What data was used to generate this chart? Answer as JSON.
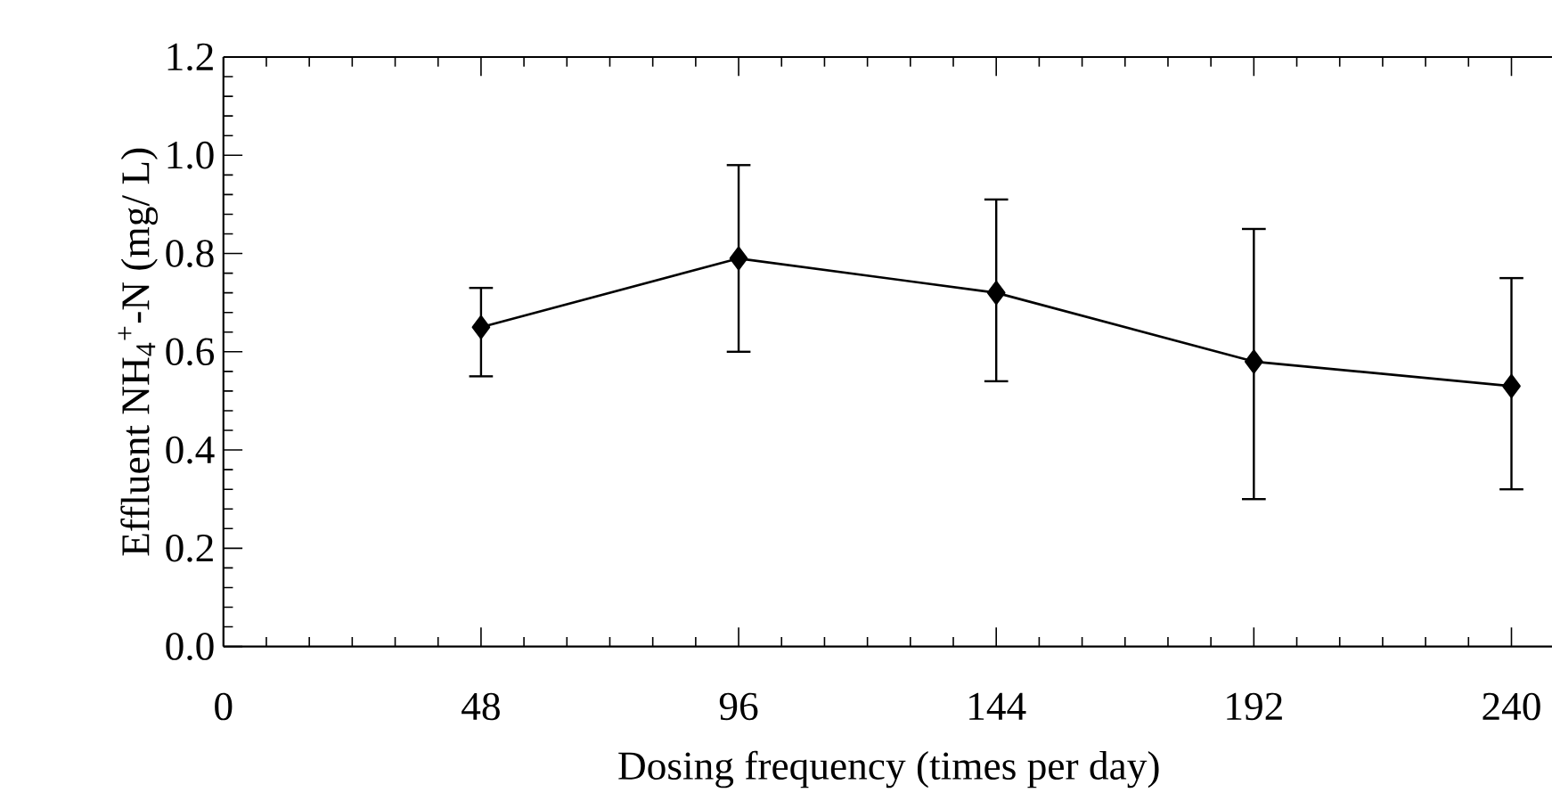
{
  "chart_data": {
    "type": "line",
    "xlabel": "Dosing frequency (times per day)",
    "ylabel": "Effluent NH$_{4}$$^{+}$-N (mg/ L)",
    "x": [
      48,
      96,
      144,
      192,
      240
    ],
    "series": [
      {
        "color": "#000000",
        "values": [
          0.65,
          0.79,
          0.72,
          0.58,
          0.53
        ],
        "errors": [
          [
            0.55,
            0.73
          ],
          [
            0.6,
            0.98
          ],
          [
            0.54,
            0.91
          ],
          [
            0.3,
            0.85
          ],
          [
            0.32,
            0.75
          ]
        ]
      }
    ],
    "xlim": [
      0,
      248
    ],
    "xticks": [
      0,
      48,
      96,
      144,
      192,
      240
    ],
    "ylim": [
      0,
      1.2
    ],
    "yticks": [
      {
        "value": 0,
        "label": "0.0"
      },
      0.2,
      0.4,
      0.6,
      0.8,
      {
        "value": 1.0,
        "label": "1.0"
      },
      1.2
    ],
    "marker": "diamond",
    "line_style": "solid",
    "grid": false
  }
}
